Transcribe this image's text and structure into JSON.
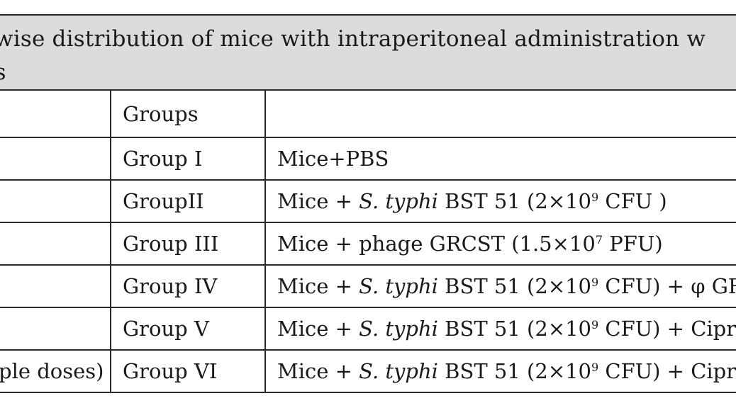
{
  "caption": {
    "line1": "wise distribution of mice with intraperitoneal administration w",
    "line2": "ts"
  },
  "table": {
    "header": {
      "col1": "",
      "col2": "Groups",
      "col3": ""
    },
    "rows": [
      {
        "col1": "",
        "group": "Group I",
        "treatment": {
          "pre": "Mice+PBS"
        }
      },
      {
        "col1": "",
        "group": "GroupII",
        "treatment": {
          "pre": "Mice + ",
          "species": "S. typhi",
          "strain": " BST 51 (2×10",
          "exp": "9",
          "post": " CFU )"
        }
      },
      {
        "col1": "",
        "group": "Group III",
        "treatment": {
          "pre": "Mice + phage GRCST (1.5×10",
          "exp": "7",
          "post": " PFU)"
        }
      },
      {
        "col1": "",
        "group": "Group IV",
        "treatment": {
          "pre": "Mice + ",
          "species": "S. typhi",
          "strain": " BST 51 (2×10",
          "exp": "9",
          "post": " CFU) + φ GRC"
        }
      },
      {
        "col1": "",
        "group": "Group V",
        "treatment": {
          "pre": "Mice + ",
          "species": "S. typhi",
          "strain": " BST 51 (2×10",
          "exp": "9",
          "post": " CFU) + Ciprof"
        }
      },
      {
        "col1": "ple doses)",
        "group": "Group VI",
        "treatment": {
          "pre": "Mice + ",
          "species": "S. typhi",
          "strain": " BST 51 (2×10",
          "exp": "9",
          "post": " CFU) + Ciprof"
        }
      }
    ]
  }
}
